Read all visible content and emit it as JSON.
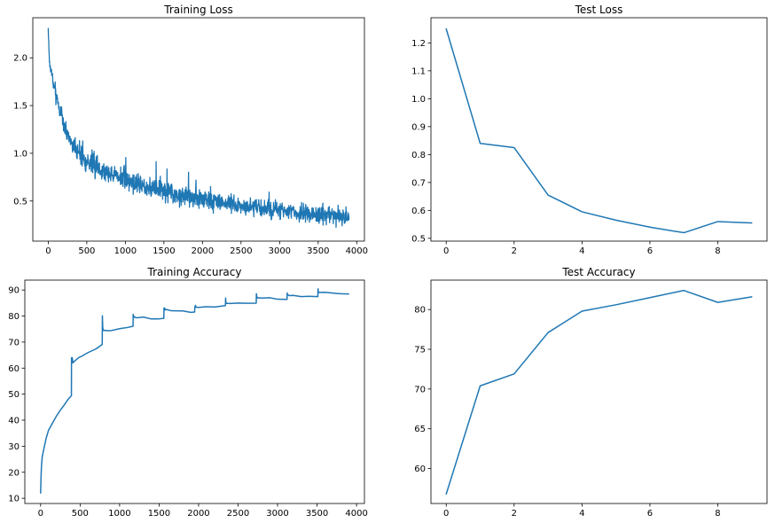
{
  "line_color": "#1f77b4",
  "chart_data": [
    {
      "type": "line",
      "title": "Training Loss",
      "xlim": [
        -200,
        4100
      ],
      "ylim": [
        0.08,
        2.42
      ],
      "xticks": [
        0,
        500,
        1000,
        1500,
        2000,
        2500,
        3000,
        3500,
        4000
      ],
      "yticks": [
        0.5,
        1.0,
        1.5,
        2.0
      ],
      "ytick_format": 1,
      "noisy": true,
      "x": [
        0,
        10,
        25,
        50,
        75,
        100,
        150,
        200,
        300,
        400,
        500,
        600,
        700,
        800,
        900,
        1000,
        1100,
        1200,
        1300,
        1400,
        1500,
        1600,
        1700,
        1800,
        1900,
        2000,
        2100,
        2200,
        2300,
        2400,
        2500,
        2600,
        2700,
        2800,
        2900,
        3000,
        3100,
        3200,
        3300,
        3400,
        3500,
        3600,
        3700,
        3800,
        3900
      ],
      "y": [
        2.3,
        2.05,
        1.9,
        1.8,
        1.7,
        1.62,
        1.45,
        1.3,
        1.12,
        1.0,
        0.92,
        0.86,
        0.82,
        0.79,
        0.76,
        0.73,
        0.7,
        0.67,
        0.65,
        0.62,
        0.6,
        0.58,
        0.57,
        0.55,
        0.53,
        0.52,
        0.5,
        0.49,
        0.48,
        0.47,
        0.45,
        0.44,
        0.43,
        0.42,
        0.41,
        0.4,
        0.39,
        0.38,
        0.37,
        0.36,
        0.35,
        0.35,
        0.34,
        0.34,
        0.33
      ],
      "noise_amp": [
        0.05,
        0.12,
        0.12,
        0.12,
        0.12,
        0.13,
        0.13,
        0.14,
        0.14,
        0.15,
        0.15,
        0.15,
        0.15,
        0.15,
        0.15,
        0.15,
        0.15,
        0.15,
        0.15,
        0.15,
        0.15,
        0.15,
        0.15,
        0.15,
        0.15,
        0.14,
        0.14,
        0.14,
        0.14,
        0.14,
        0.13,
        0.13,
        0.13,
        0.13,
        0.13,
        0.13,
        0.12,
        0.12,
        0.12,
        0.12,
        0.12,
        0.12,
        0.12,
        0.12,
        0.12
      ],
      "n_points": 1300,
      "seed": 7
    },
    {
      "type": "line",
      "title": "Test Loss",
      "xlim": [
        -0.45,
        9.45
      ],
      "ylim": [
        0.49,
        1.29
      ],
      "xticks": [
        0,
        2,
        4,
        6,
        8
      ],
      "yticks": [
        0.5,
        0.6,
        0.7,
        0.8,
        0.9,
        1.0,
        1.1,
        1.2
      ],
      "ytick_format": 1,
      "x": [
        0,
        1,
        2,
        3,
        4,
        5,
        6,
        7,
        8,
        9
      ],
      "y": [
        1.25,
        0.84,
        0.825,
        0.655,
        0.595,
        0.565,
        0.54,
        0.52,
        0.56,
        0.555
      ]
    },
    {
      "type": "line",
      "title": "Training Accuracy",
      "xlim": [
        -200,
        4100
      ],
      "ylim": [
        8.0,
        93.8
      ],
      "xticks": [
        0,
        500,
        1000,
        1500,
        2000,
        2500,
        3000,
        3500,
        4000
      ],
      "yticks": [
        10,
        20,
        30,
        40,
        50,
        60,
        70,
        80,
        90
      ],
      "ytick_format": 0,
      "x": [
        0,
        5,
        10,
        20,
        40,
        70,
        100,
        150,
        200,
        250,
        300,
        350,
        390,
        391,
        395,
        400,
        410,
        440,
        480,
        520,
        600,
        700,
        780,
        782,
        786,
        790,
        800,
        820,
        850,
        900,
        1000,
        1100,
        1170,
        1172,
        1176,
        1180,
        1190,
        1210,
        1250,
        1300,
        1400,
        1500,
        1560,
        1562,
        1566,
        1570,
        1580,
        1600,
        1650,
        1700,
        1800,
        1900,
        1950,
        1952,
        1955,
        1960,
        1970,
        2000,
        2100,
        2200,
        2340,
        2342,
        2345,
        2350,
        2360,
        2400,
        2500,
        2600,
        2730,
        2732,
        2735,
        2740,
        2750,
        2800,
        2900,
        3000,
        3120,
        3122,
        3125,
        3130,
        3150,
        3200,
        3300,
        3400,
        3510,
        3512,
        3515,
        3520,
        3540,
        3600,
        3700,
        3800,
        3900
      ],
      "y": [
        12,
        18,
        22,
        26,
        29,
        33,
        36,
        39,
        41.5,
        44,
        46,
        48,
        49.5,
        64,
        62,
        64,
        62,
        63,
        64,
        64.5,
        66,
        67.5,
        69,
        80,
        76,
        75,
        74.5,
        74.5,
        74.5,
        74.5,
        75,
        75.5,
        76,
        80.5,
        79.5,
        80,
        79.5,
        79.5,
        79.5,
        79.5,
        79,
        79,
        79,
        83,
        82,
        83,
        82.5,
        82.5,
        82,
        82,
        82,
        81.5,
        81.5,
        83.5,
        83.5,
        84,
        83.5,
        83.5,
        83.5,
        83.5,
        84,
        87,
        85.5,
        85,
        85,
        85,
        85,
        85,
        85,
        88.5,
        88,
        87,
        87,
        87,
        87,
        86.5,
        86.5,
        89,
        88,
        88,
        88,
        88,
        87.5,
        87.5,
        87.5,
        90.5,
        89.5,
        89,
        89,
        89,
        89,
        88.5,
        88.5
      ],
      "noise_amp": 0.35,
      "seed": 11
    },
    {
      "type": "line",
      "title": "Test Accuracy",
      "xlim": [
        -0.45,
        9.45
      ],
      "ylim": [
        55.6,
        83.7
      ],
      "xticks": [
        0,
        2,
        4,
        6,
        8
      ],
      "yticks": [
        60,
        65,
        70,
        75,
        80
      ],
      "ytick_format": 0,
      "x": [
        0,
        1,
        2,
        3,
        4,
        5,
        6,
        7,
        8,
        9
      ],
      "y": [
        56.8,
        70.4,
        71.9,
        77.1,
        79.8,
        80.6,
        81.5,
        82.4,
        80.9,
        81.6
      ]
    }
  ]
}
